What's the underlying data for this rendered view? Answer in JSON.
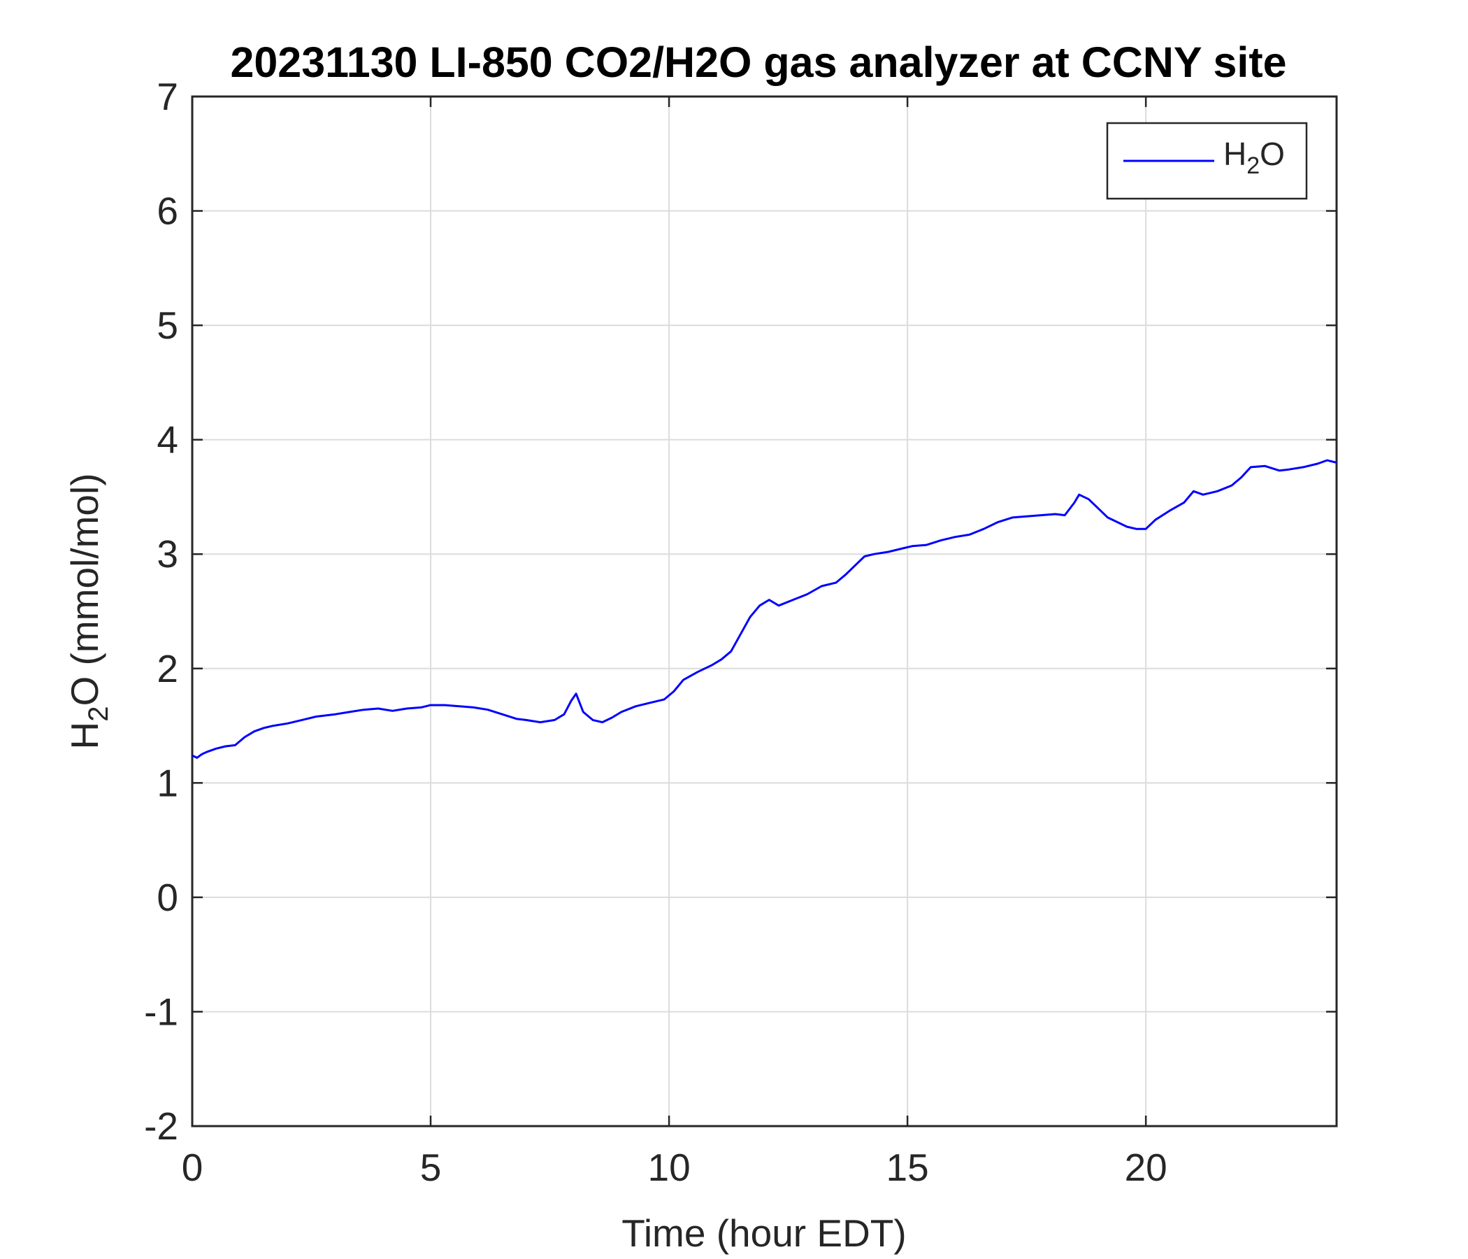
{
  "chart_data": {
    "type": "line",
    "title": "20231130 LI-850 CO2/H2O gas analyzer at CCNY site",
    "xlabel": "Time (hour EDT)",
    "ylabel": {
      "main": "H",
      "sub": "2",
      "tail": "O (mmol/mol)"
    },
    "xlim": [
      0,
      24
    ],
    "ylim": [
      -2,
      7
    ],
    "xticks": [
      0,
      5,
      10,
      15,
      20
    ],
    "yticks": [
      -2,
      -1,
      0,
      1,
      2,
      3,
      4,
      5,
      6,
      7
    ],
    "grid": true,
    "legend": {
      "placement": "top-right",
      "label_main": "H",
      "label_sub": "2",
      "label_tail": "O"
    },
    "series": [
      {
        "name": "H2O",
        "color": "#0000ff",
        "x": [
          0,
          0.1,
          0.2,
          0.3,
          0.5,
          0.7,
          0.9,
          1.1,
          1.3,
          1.5,
          1.7,
          2.0,
          2.3,
          2.6,
          3.0,
          3.3,
          3.6,
          3.9,
          4.2,
          4.5,
          4.8,
          5.0,
          5.3,
          5.6,
          5.9,
          6.2,
          6.5,
          6.8,
          7.0,
          7.3,
          7.6,
          7.8,
          7.95,
          8.05,
          8.2,
          8.4,
          8.6,
          8.8,
          9.0,
          9.3,
          9.6,
          9.9,
          10.1,
          10.3,
          10.6,
          10.9,
          11.1,
          11.3,
          11.5,
          11.7,
          11.9,
          12.1,
          12.3,
          12.6,
          12.9,
          13.2,
          13.5,
          13.7,
          13.9,
          14.1,
          14.3,
          14.6,
          14.9,
          15.1,
          15.4,
          15.7,
          16.0,
          16.3,
          16.6,
          16.9,
          17.2,
          17.5,
          17.8,
          18.1,
          18.3,
          18.5,
          18.6,
          18.8,
          19.0,
          19.2,
          19.4,
          19.6,
          19.8,
          20.0,
          20.2,
          20.5,
          20.8,
          21.0,
          21.2,
          21.5,
          21.8,
          22.0,
          22.2,
          22.5,
          22.8,
          23.0,
          23.3,
          23.6,
          23.8,
          24.0
        ],
        "y": [
          1.24,
          1.22,
          1.25,
          1.27,
          1.3,
          1.32,
          1.33,
          1.4,
          1.45,
          1.48,
          1.5,
          1.52,
          1.55,
          1.58,
          1.6,
          1.62,
          1.64,
          1.65,
          1.63,
          1.65,
          1.66,
          1.68,
          1.68,
          1.67,
          1.66,
          1.64,
          1.6,
          1.56,
          1.55,
          1.53,
          1.55,
          1.6,
          1.72,
          1.78,
          1.62,
          1.55,
          1.53,
          1.57,
          1.62,
          1.67,
          1.7,
          1.73,
          1.8,
          1.9,
          1.97,
          2.03,
          2.08,
          2.15,
          2.3,
          2.45,
          2.55,
          2.6,
          2.55,
          2.6,
          2.65,
          2.72,
          2.75,
          2.82,
          2.9,
          2.98,
          3.0,
          3.02,
          3.05,
          3.07,
          3.08,
          3.12,
          3.15,
          3.17,
          3.22,
          3.28,
          3.32,
          3.33,
          3.34,
          3.35,
          3.34,
          3.45,
          3.52,
          3.48,
          3.4,
          3.32,
          3.28,
          3.24,
          3.22,
          3.22,
          3.3,
          3.38,
          3.45,
          3.55,
          3.52,
          3.55,
          3.6,
          3.67,
          3.76,
          3.77,
          3.73,
          3.74,
          3.76,
          3.79,
          3.82,
          3.8
        ]
      }
    ]
  }
}
